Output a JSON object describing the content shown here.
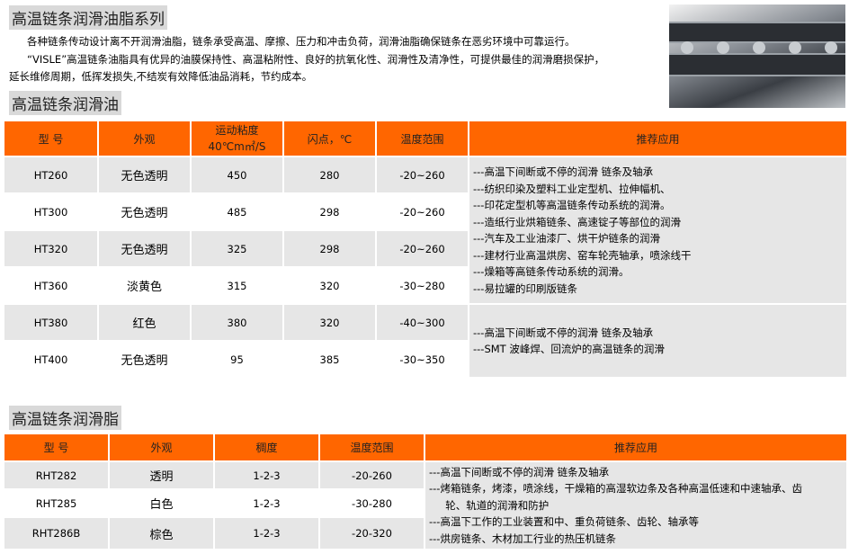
{
  "title": "高温链条润滑油脂系列",
  "intro": [
    "各种链条传动设计离不开润滑油脂，链条承受高温、摩擦、压力和冲击负荷，润滑油脂确保链条在恶劣环境中可靠运行。",
    "“VISLE”高温链条油脂具有优异的油膜保持性、高温粘附性、良好的抗氧化性、润滑性及清净性，可提供最佳的润滑磨损保护，",
    "延长维修周期，低挥发损失,不结炭有效降低油品消耗，节约成本。"
  ],
  "oil": {
    "heading": "高温链条润滑油",
    "headers": [
      "型  号",
      "外观",
      "运动粘度",
      "40℃m㎡/S",
      "闪点，℃",
      "温度范围",
      "推荐应用"
    ],
    "rows": [
      [
        "HT260",
        "无色透明",
        "450",
        "280",
        "-20~260"
      ],
      [
        "HT300",
        "无色透明",
        "485",
        "298",
        "-20~260"
      ],
      [
        "HT320",
        "无色透明",
        "325",
        "298",
        "-20~260"
      ],
      [
        "HT360",
        "淡黄色",
        "315",
        "320",
        "-30~280"
      ],
      [
        "HT380",
        "红色",
        "380",
        "320",
        "-40~300"
      ],
      [
        "HT400",
        "无色透明",
        "95",
        "385",
        "-30~350"
      ]
    ],
    "app1": [
      "---高温下间断或不停的润滑 链条及轴承",
      "---纺织印染及塑料工业定型机、拉伸幅机、",
      "---印花定型机等高温链条传动系统的润滑。",
      "---造纸行业烘箱链条、高速锭子等部位的润滑",
      "---汽车及工业油漆厂、烘干炉链条的润滑",
      "---建材行业高温烘房、窑车轮壳轴承，喷涂线干",
      "---燥箱等高链条传动系统的润滑。",
      "---易拉罐的印刷版链条"
    ],
    "app2": [
      "---高温下间断或不停的润滑 链条及轴承",
      "---SMT 波峰焊、回流炉的高温链条的润滑"
    ]
  },
  "grease": {
    "heading": "高温链条润滑脂",
    "headers": [
      "型  号",
      "外观",
      "稠度",
      "温度范围",
      "推荐应用"
    ],
    "rows": [
      [
        "RHT282",
        "透明",
        "1-2-3",
        "-20-260"
      ],
      [
        "RHT285",
        "白色",
        "1-2-3",
        "-30-280"
      ],
      [
        "RHT286B",
        "棕色",
        "1-2-3",
        "-20-320"
      ]
    ],
    "app": [
      "---高温下间断或不停的润滑 链条及轴承",
      "---烤箱链条，烤漆，喷涂线，干燥箱的高湿软边条及各种高温低速和中速轴承、齿",
      "     轮、轨道的润滑和防护",
      "---高温下工作的工业装置和中、重负荷链条、齿轮、轴承等",
      "---烘房链条、木材加工行业的热压机链条"
    ]
  },
  "colors": {
    "header": "#ff6600",
    "row": "#e6e6e6"
  }
}
